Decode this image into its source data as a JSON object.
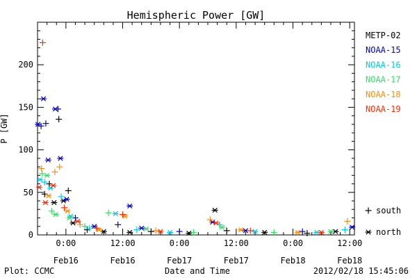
{
  "chart_data": {
    "type": "scatter",
    "title": "Hemispheric Power [GW]",
    "ylabel": "P [GW]",
    "xlabel": "Date and Time",
    "ylim": [
      0,
      250
    ],
    "yticks": [
      0,
      50,
      100,
      150,
      200
    ],
    "xlim": [
      "2012-02-15 18:00",
      "2012-02-18 13:00"
    ],
    "xticks": [
      {
        "x": "2012-02-16 00:00",
        "label": "0:00",
        "date": "Feb16"
      },
      {
        "x": "2012-02-16 12:00",
        "label": "12:00",
        "date": "Feb16"
      },
      {
        "x": "2012-02-17 00:00",
        "label": "0:00",
        "date": "Feb17"
      },
      {
        "x": "2012-02-17 12:00",
        "label": "12:00",
        "date": "Feb17"
      },
      {
        "x": "2012-02-18 00:00",
        "label": "0:00",
        "date": "Feb18"
      },
      {
        "x": "2012-02-18 12:00",
        "label": "12:00",
        "date": "Feb18"
      }
    ],
    "grid": false,
    "legend_position": "right",
    "series": [
      {
        "name": "METP-02",
        "color": "#000000",
        "points": [
          {
            "x": "2012-02-15 19:30",
            "y": 48,
            "hemisphere": "south"
          },
          {
            "x": "2012-02-15 20:30",
            "y": 60,
            "hemisphere": "south"
          },
          {
            "x": "2012-02-15 21:30",
            "y": 38,
            "hemisphere": "north"
          },
          {
            "x": "2012-02-15 22:30",
            "y": 136,
            "hemisphere": "south"
          },
          {
            "x": "2012-02-15 23:30",
            "y": 40,
            "hemisphere": "north"
          },
          {
            "x": "2012-02-16 00:30",
            "y": 52,
            "hemisphere": "south"
          },
          {
            "x": "2012-02-16 01:30",
            "y": 14,
            "hemisphere": "north"
          },
          {
            "x": "2012-02-16 04:30",
            "y": 6,
            "hemisphere": "south"
          },
          {
            "x": "2012-02-16 08:00",
            "y": 4,
            "hemisphere": "north"
          },
          {
            "x": "2012-02-16 13:30",
            "y": 3,
            "hemisphere": "north"
          },
          {
            "x": "2012-02-16 18:00",
            "y": 4,
            "hemisphere": "south"
          },
          {
            "x": "2012-02-17 02:00",
            "y": 2,
            "hemisphere": "north"
          },
          {
            "x": "2012-02-17 07:30",
            "y": 29,
            "hemisphere": "north"
          },
          {
            "x": "2012-02-17 10:00",
            "y": 5,
            "hemisphere": "south"
          },
          {
            "x": "2012-02-17 18:00",
            "y": 3,
            "hemisphere": "north"
          },
          {
            "x": "2012-02-18 03:00",
            "y": 2,
            "hemisphere": "south"
          },
          {
            "x": "2012-02-18 09:00",
            "y": 4,
            "hemisphere": "north"
          }
        ]
      },
      {
        "name": "NOAA-15",
        "color": "#0000cc",
        "points": [
          {
            "x": "2012-02-15 18:05",
            "y": 130,
            "hemisphere": "north"
          },
          {
            "x": "2012-02-15 18:45",
            "y": 128,
            "hemisphere": "south"
          },
          {
            "x": "2012-02-15 19:15",
            "y": 160,
            "hemisphere": "north"
          },
          {
            "x": "2012-02-15 19:45",
            "y": 131,
            "hemisphere": "south"
          },
          {
            "x": "2012-02-15 20:15",
            "y": 88,
            "hemisphere": "north"
          },
          {
            "x": "2012-02-15 21:45",
            "y": 148,
            "hemisphere": "north"
          },
          {
            "x": "2012-02-15 22:20",
            "y": 148,
            "hemisphere": "south"
          },
          {
            "x": "2012-02-15 22:50",
            "y": 90,
            "hemisphere": "north"
          },
          {
            "x": "2012-02-16 00:10",
            "y": 42,
            "hemisphere": "north"
          },
          {
            "x": "2012-02-16 02:00",
            "y": 20,
            "hemisphere": "south"
          },
          {
            "x": "2012-02-16 06:00",
            "y": 10,
            "hemisphere": "north"
          },
          {
            "x": "2012-02-16 11:00",
            "y": 12,
            "hemisphere": "south"
          },
          {
            "x": "2012-02-16 13:30",
            "y": 34,
            "hemisphere": "north"
          },
          {
            "x": "2012-02-16 16:00",
            "y": 8,
            "hemisphere": "north"
          },
          {
            "x": "2012-02-17 00:00",
            "y": 4,
            "hemisphere": "south"
          },
          {
            "x": "2012-02-17 07:00",
            "y": 15,
            "hemisphere": "north"
          },
          {
            "x": "2012-02-17 14:00",
            "y": 5,
            "hemisphere": "north"
          },
          {
            "x": "2012-02-18 02:00",
            "y": 4,
            "hemisphere": "south"
          },
          {
            "x": "2012-02-18 12:30",
            "y": 9,
            "hemisphere": "north"
          }
        ]
      },
      {
        "name": "NOAA-16",
        "color": "#00c8e6",
        "points": [
          {
            "x": "2012-02-15 18:30",
            "y": 65,
            "hemisphere": "north"
          },
          {
            "x": "2012-02-15 19:30",
            "y": 62,
            "hemisphere": "south"
          },
          {
            "x": "2012-02-15 20:45",
            "y": 55,
            "hemisphere": "north"
          },
          {
            "x": "2012-02-15 23:00",
            "y": 45,
            "hemisphere": "south"
          },
          {
            "x": "2012-02-16 01:00",
            "y": 22,
            "hemisphere": "north"
          },
          {
            "x": "2012-02-16 05:00",
            "y": 8,
            "hemisphere": "south"
          },
          {
            "x": "2012-02-16 10:30",
            "y": 25,
            "hemisphere": "north"
          },
          {
            "x": "2012-02-16 15:00",
            "y": 6,
            "hemisphere": "south"
          },
          {
            "x": "2012-02-16 22:00",
            "y": 3,
            "hemisphere": "north"
          },
          {
            "x": "2012-02-17 08:30",
            "y": 12,
            "hemisphere": "south"
          },
          {
            "x": "2012-02-17 16:00",
            "y": 4,
            "hemisphere": "north"
          },
          {
            "x": "2012-02-18 05:00",
            "y": 3,
            "hemisphere": "north"
          },
          {
            "x": "2012-02-18 11:00",
            "y": 6,
            "hemisphere": "south"
          }
        ]
      },
      {
        "name": "NOAA-17",
        "color": "#33dd66",
        "points": [
          {
            "x": "2012-02-15 19:00",
            "y": 72,
            "hemisphere": "south"
          },
          {
            "x": "2012-02-15 20:00",
            "y": 70,
            "hemisphere": "north"
          },
          {
            "x": "2012-02-15 21:00",
            "y": 28,
            "hemisphere": "south"
          },
          {
            "x": "2012-02-15 21:50",
            "y": 24,
            "hemisphere": "north"
          },
          {
            "x": "2012-02-16 00:45",
            "y": 20,
            "hemisphere": "north"
          },
          {
            "x": "2012-02-16 04:00",
            "y": 10,
            "hemisphere": "south"
          },
          {
            "x": "2012-02-16 09:00",
            "y": 26,
            "hemisphere": "south"
          },
          {
            "x": "2012-02-16 17:00",
            "y": 7,
            "hemisphere": "north"
          },
          {
            "x": "2012-02-17 03:00",
            "y": 3,
            "hemisphere": "south"
          },
          {
            "x": "2012-02-17 09:00",
            "y": 9,
            "hemisphere": "north"
          },
          {
            "x": "2012-02-17 20:00",
            "y": 3,
            "hemisphere": "south"
          },
          {
            "x": "2012-02-18 08:00",
            "y": 4,
            "hemisphere": "north"
          }
        ]
      },
      {
        "name": "NOAA-18",
        "color": "#ff8c00",
        "points": [
          {
            "x": "2012-02-15 18:50",
            "y": 78,
            "hemisphere": "south"
          },
          {
            "x": "2012-02-15 20:20",
            "y": 46,
            "hemisphere": "north"
          },
          {
            "x": "2012-02-15 21:40",
            "y": 74,
            "hemisphere": "south"
          },
          {
            "x": "2012-02-15 22:40",
            "y": 80,
            "hemisphere": "south"
          },
          {
            "x": "2012-02-16 00:20",
            "y": 28,
            "hemisphere": "north"
          },
          {
            "x": "2012-02-16 03:00",
            "y": 12,
            "hemisphere": "south"
          },
          {
            "x": "2012-02-16 07:00",
            "y": 6,
            "hemisphere": "north"
          },
          {
            "x": "2012-02-16 12:30",
            "y": 22,
            "hemisphere": "north"
          },
          {
            "x": "2012-02-16 19:00",
            "y": 5,
            "hemisphere": "south"
          },
          {
            "x": "2012-02-17 06:30",
            "y": 18,
            "hemisphere": "south"
          },
          {
            "x": "2012-02-17 13:00",
            "y": 6,
            "hemisphere": "north"
          },
          {
            "x": "2012-02-18 01:00",
            "y": 3,
            "hemisphere": "north"
          },
          {
            "x": "2012-02-18 11:30",
            "y": 16,
            "hemisphere": "south"
          }
        ]
      },
      {
        "name": "NOAA-19",
        "color": "#ff2a00",
        "points": [
          {
            "x": "2012-02-15 18:20",
            "y": 56,
            "hemisphere": "north"
          },
          {
            "x": "2012-02-15 19:05",
            "y": 226,
            "hemisphere": "south"
          },
          {
            "x": "2012-02-15 19:40",
            "y": 38,
            "hemisphere": "north"
          },
          {
            "x": "2012-02-15 21:20",
            "y": 58,
            "hemisphere": "north"
          },
          {
            "x": "2012-02-15 23:40",
            "y": 32,
            "hemisphere": "south"
          },
          {
            "x": "2012-02-16 02:30",
            "y": 16,
            "hemisphere": "north"
          },
          {
            "x": "2012-02-16 06:30",
            "y": 8,
            "hemisphere": "south"
          },
          {
            "x": "2012-02-16 12:00",
            "y": 24,
            "hemisphere": "south"
          },
          {
            "x": "2012-02-16 20:00",
            "y": 4,
            "hemisphere": "north"
          },
          {
            "x": "2012-02-17 07:45",
            "y": 14,
            "hemisphere": "north"
          },
          {
            "x": "2012-02-17 15:00",
            "y": 5,
            "hemisphere": "south"
          },
          {
            "x": "2012-02-18 06:00",
            "y": 3,
            "hemisphere": "north"
          }
        ]
      }
    ],
    "marker_legend": [
      {
        "symbol": "+",
        "label": "south"
      },
      {
        "symbol": "*",
        "label": "north"
      }
    ]
  },
  "footer": {
    "left": "Plot: CCMC",
    "center": "Date and Time",
    "right": "2012/02/18 15:45:06"
  }
}
